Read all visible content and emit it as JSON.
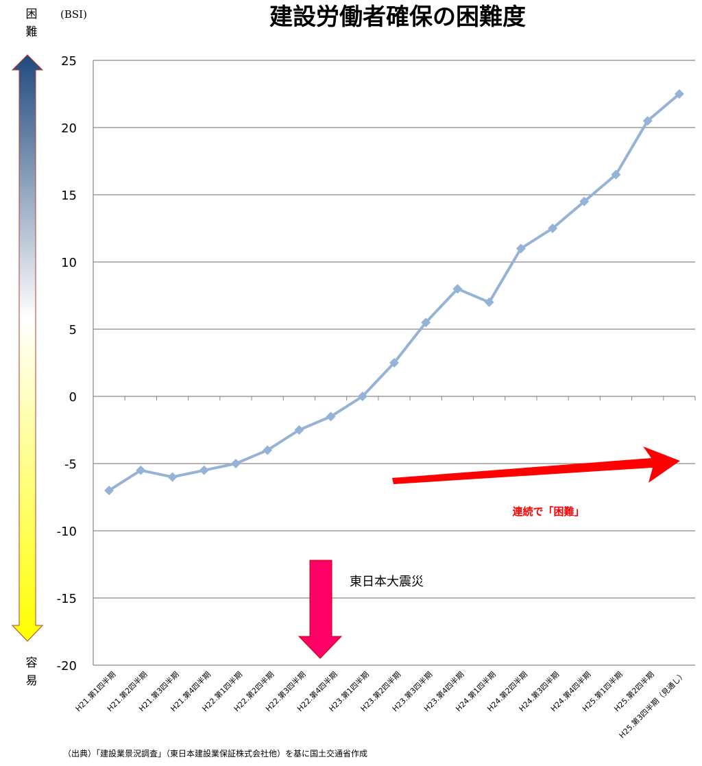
{
  "chart_data": {
    "type": "line",
    "title": "建設労働者確保の困難度",
    "ylabel": "(BSI)",
    "ylim": [
      -20,
      25
    ],
    "yticks": [
      25,
      20,
      15,
      10,
      5,
      0,
      -5,
      -10,
      -15,
      -20
    ],
    "ytick_labels": [
      "25",
      "20",
      "15",
      "10",
      "5",
      "0",
      "-5",
      "-10",
      "-15",
      "-20"
    ],
    "grid": true,
    "categories": [
      "H21.第1四半期",
      "H21.第2四半期",
      "H21.第3四半期",
      "H21.第4四半期",
      "H22.第1四半期",
      "H22.第2四半期",
      "H22.第3四半期",
      "H22.第4四半期",
      "H23.第1四半期",
      "H23.第2四半期",
      "H23.第3四半期",
      "H23.第4四半期",
      "H24.第1四半期",
      "H24.第2四半期",
      "H24.第3四半期",
      "H24.第4四半期",
      "H25.第1四半期",
      "H25.第2四半期",
      "H25.第3四半期（見通し）"
    ],
    "series": [
      {
        "values": [
          -7,
          -5.5,
          -6,
          -5.5,
          -5,
          -4,
          -2.5,
          -1.5,
          0,
          2.5,
          5.5,
          8,
          7,
          11,
          12.5,
          14.5,
          16.5,
          20.5,
          22.5
        ],
        "color": "#95b3d7"
      }
    ],
    "side_arrow": {
      "top_label": "困難",
      "bottom_label": "容易",
      "top_color": "#1f497d",
      "mid_color": "#ffffff",
      "bottom_color": "#ffff00"
    },
    "annotations": {
      "trend_label": "連続で「困難」",
      "trend_color": "#ff0000",
      "event_label": "東日本大震災",
      "event_arrow_color": "#ff0066"
    },
    "source": "（出典）「建設業景況調査」（東日本建設業保証株式会社他）を基に国土交通省作成"
  }
}
